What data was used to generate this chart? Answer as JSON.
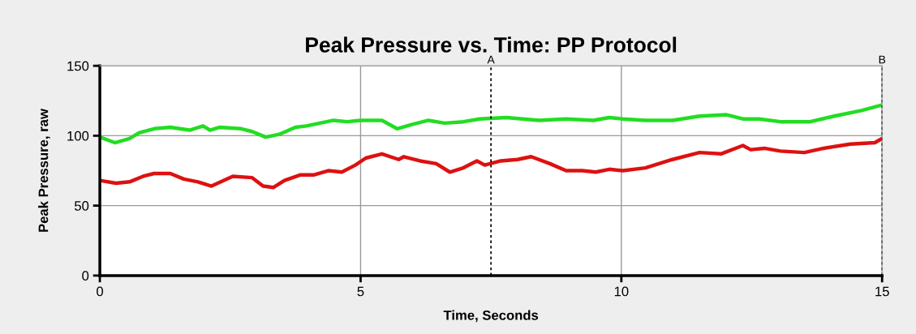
{
  "chart_data": {
    "type": "line",
    "title": "Peak Pressure vs. Time: PP Protocol",
    "xlabel": "Time, Seconds",
    "ylabel": "Peak Pressure, raw",
    "xlim": [
      0,
      15
    ],
    "ylim": [
      0,
      150
    ],
    "xticks": [
      0,
      5,
      10,
      15
    ],
    "yticks": [
      0,
      50,
      100,
      150
    ],
    "grid": true,
    "legend": false,
    "marker": "none",
    "line_style": "solid",
    "series": [
      {
        "color": "#22dd22",
        "x": [
          0,
          0.29,
          0.57,
          0.75,
          1.04,
          1.35,
          1.72,
          1.98,
          2.11,
          2.29,
          2.71,
          2.92,
          3.18,
          3.44,
          3.75,
          3.96,
          4.48,
          4.74,
          5.0,
          5.41,
          5.7,
          5.98,
          6.3,
          6.61,
          6.97,
          7.28,
          7.8,
          8.42,
          8.94,
          9.46,
          9.77,
          10.03,
          10.46,
          10.98,
          11.5,
          12.02,
          12.33,
          12.64,
          13.05,
          13.62,
          14.08,
          14.6,
          15
        ],
        "values": [
          99,
          95,
          98,
          102,
          105,
          106,
          104,
          107,
          104,
          106,
          105,
          103,
          99,
          101,
          106,
          107,
          111,
          110,
          111,
          111,
          105,
          108,
          111,
          109,
          110,
          112,
          113,
          111,
          112,
          111,
          113,
          112,
          111,
          111,
          114,
          115,
          112,
          112,
          110,
          110,
          114,
          118,
          122
        ]
      },
      {
        "color": "#dd1111",
        "x": [
          0,
          0.31,
          0.57,
          0.83,
          1.04,
          1.35,
          1.61,
          1.88,
          2.14,
          2.55,
          2.92,
          3.13,
          3.33,
          3.54,
          3.85,
          4.11,
          4.38,
          4.64,
          4.9,
          5.1,
          5.41,
          5.73,
          5.83,
          6.14,
          6.45,
          6.71,
          6.97,
          7.23,
          7.38,
          7.69,
          8.01,
          8.27,
          8.63,
          8.94,
          9.25,
          9.51,
          9.77,
          10.03,
          10.46,
          10.98,
          11.5,
          11.91,
          12.33,
          12.48,
          12.74,
          13.05,
          13.51,
          13.88,
          14.39,
          14.86,
          15
        ],
        "values": [
          68,
          66,
          67,
          71,
          73,
          73,
          69,
          67,
          64,
          71,
          70,
          64,
          63,
          68,
          72,
          72,
          75,
          74,
          79,
          84,
          87,
          83,
          85,
          82,
          80,
          74,
          77,
          82,
          79,
          82,
          83,
          85,
          80,
          75,
          75,
          74,
          76,
          75,
          77,
          83,
          88,
          87,
          93,
          90,
          91,
          89,
          88,
          91,
          94,
          95,
          98
        ]
      }
    ],
    "ref_lines": [
      {
        "axis": "x",
        "value": 7.5,
        "label": "A",
        "color": "#000000",
        "line_style": "dotted"
      },
      {
        "axis": "x",
        "value": 15,
        "label": "B",
        "color": "#000000",
        "line_style": "dotted"
      }
    ]
  }
}
